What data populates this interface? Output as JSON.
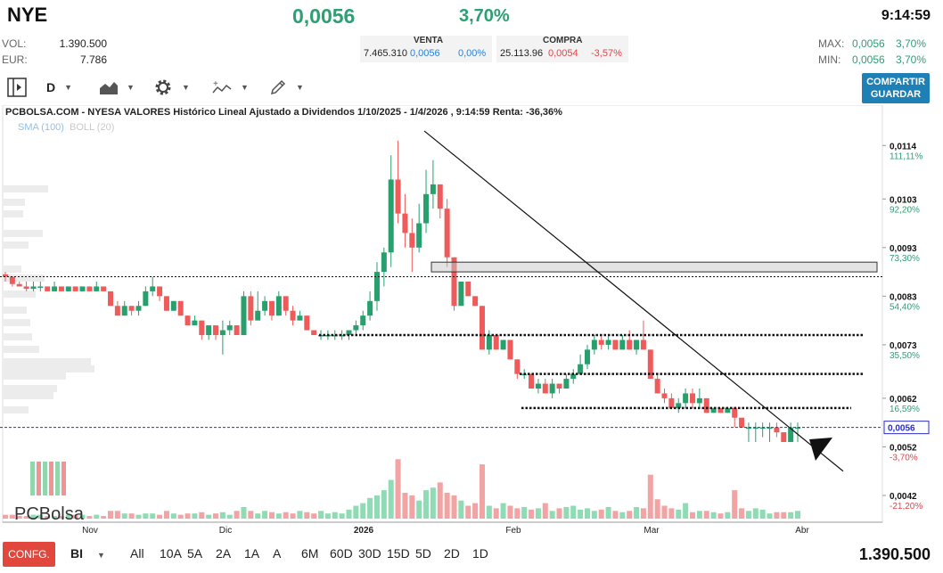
{
  "header": {
    "ticker": "NYE",
    "price": "0,0056",
    "change_pct": "3,70%",
    "time": "9:14:59",
    "vol_label": "VOL:",
    "vol_value": "1.390.500",
    "eur_label": "EUR:",
    "eur_value": "7.786",
    "venta_label": "VENTA",
    "venta_qty": "7.465.310",
    "venta_price": "0,0056",
    "venta_pct": "0,00%",
    "compra_label": "COMPRA",
    "compra_qty": "25.113.96",
    "compra_price": "0,0054",
    "compra_pct": "-3,57%",
    "max_label": "MAX:",
    "max_price": "0,0056",
    "max_pct": "3,70%",
    "min_label": "MIN:",
    "min_price": "0,0056",
    "min_pct": "3,70%"
  },
  "toolbar": {
    "period": "D",
    "share_label": "COMPARTIR",
    "save_label": "GUARDAR",
    "icons": [
      "panel-toggle-icon",
      "area-chart-icon",
      "gear-icon",
      "indicators-icon",
      "pencil-icon"
    ]
  },
  "chart": {
    "title": "PCBOLSA.COM - NYESA VALORES Histórico Lineal Ajustado a Dividendos 1/10/2025 - 1/4/2026 , 9:14:59 Renta: -36,36%",
    "sma_label": "SMA (100)",
    "boll_label": "BOLL (20)",
    "watermark": "PCBolsa",
    "current_label": "0,0056",
    "colors": {
      "up": "#27a06e",
      "down": "#ef5b5b",
      "vol_up": "#8fdcb4",
      "vol_down": "#f2a3a3",
      "sma": "#8fc1ea",
      "boll": "#c9c9c9",
      "current_line": "#2b2bd0"
    }
  },
  "chart_data": {
    "type": "candlestick",
    "y_axis": [
      {
        "price": "0,0114",
        "pct": "111,11%"
      },
      {
        "price": "0,0103",
        "pct": "92,20%"
      },
      {
        "price": "0,0093",
        "pct": "73,30%"
      },
      {
        "price": "0,0083",
        "pct": "54,40%"
      },
      {
        "price": "0,0073",
        "pct": "35,50%"
      },
      {
        "price": "0,0062",
        "pct": "16,59%"
      },
      {
        "price": "0,0052",
        "pct": "-3,70%"
      },
      {
        "price": "0,0042",
        "pct": "-21,20%"
      }
    ],
    "x_axis": [
      "Nov",
      "Dic",
      "2026",
      "Feb",
      "Mar",
      "Abr"
    ],
    "ylim": [
      0.004,
      0.0118
    ],
    "candles": [
      [
        0.00875,
        0.0088,
        0.0086,
        0.0087
      ],
      [
        0.0087,
        0.0087,
        0.0085,
        0.00855
      ],
      [
        0.00855,
        0.0086,
        0.0085,
        0.0085
      ],
      [
        0.0085,
        0.0086,
        0.0084,
        0.00845
      ],
      [
        0.00845,
        0.0086,
        0.0084,
        0.0085
      ],
      [
        0.0085,
        0.0086,
        0.0084,
        0.0085
      ],
      [
        0.0085,
        0.0085,
        0.0084,
        0.0084
      ],
      [
        0.0084,
        0.0086,
        0.0084,
        0.0085
      ],
      [
        0.0085,
        0.0085,
        0.0084,
        0.0084
      ],
      [
        0.0084,
        0.0085,
        0.0084,
        0.0085
      ],
      [
        0.0085,
        0.0085,
        0.0084,
        0.0084
      ],
      [
        0.0084,
        0.0085,
        0.0084,
        0.0085
      ],
      [
        0.0085,
        0.0085,
        0.0084,
        0.0084
      ],
      [
        0.0084,
        0.0086,
        0.0084,
        0.0085
      ],
      [
        0.0085,
        0.0085,
        0.0084,
        0.0084
      ],
      [
        0.0084,
        0.0084,
        0.0081,
        0.0081
      ],
      [
        0.0081,
        0.0082,
        0.0079,
        0.0079
      ],
      [
        0.0079,
        0.0082,
        0.0079,
        0.0081
      ],
      [
        0.0081,
        0.0081,
        0.0079,
        0.008
      ],
      [
        0.008,
        0.0082,
        0.0079,
        0.0081
      ],
      [
        0.0081,
        0.0085,
        0.0081,
        0.0084
      ],
      [
        0.0084,
        0.0087,
        0.0083,
        0.0085
      ],
      [
        0.0085,
        0.0085,
        0.0082,
        0.0083
      ],
      [
        0.0083,
        0.0083,
        0.008,
        0.008
      ],
      [
        0.008,
        0.0082,
        0.008,
        0.0082
      ],
      [
        0.0082,
        0.0082,
        0.0079,
        0.0079
      ],
      [
        0.0079,
        0.0079,
        0.0077,
        0.0077
      ],
      [
        0.0077,
        0.0079,
        0.0077,
        0.0078
      ],
      [
        0.0078,
        0.0078,
        0.0074,
        0.0075
      ],
      [
        0.0075,
        0.0077,
        0.0074,
        0.0077
      ],
      [
        0.0077,
        0.0077,
        0.0074,
        0.0075
      ],
      [
        0.0075,
        0.0078,
        0.0071,
        0.0076
      ],
      [
        0.0076,
        0.0078,
        0.0075,
        0.0077
      ],
      [
        0.0077,
        0.0077,
        0.0075,
        0.0075
      ],
      [
        0.0075,
        0.0084,
        0.0075,
        0.0083
      ],
      [
        0.0083,
        0.0084,
        0.0077,
        0.0078
      ],
      [
        0.0078,
        0.0084,
        0.0078,
        0.008
      ],
      [
        0.008,
        0.0083,
        0.0079,
        0.0082
      ],
      [
        0.0082,
        0.0082,
        0.0078,
        0.0079
      ],
      [
        0.0079,
        0.0084,
        0.0079,
        0.0083
      ],
      [
        0.0083,
        0.0083,
        0.0079,
        0.008
      ],
      [
        0.008,
        0.0081,
        0.0077,
        0.0078
      ],
      [
        0.0078,
        0.008,
        0.0078,
        0.0079
      ],
      [
        0.0079,
        0.0079,
        0.0076,
        0.0076
      ],
      [
        0.0076,
        0.0076,
        0.0075,
        0.0075
      ],
      [
        0.0075,
        0.0076,
        0.0074,
        0.0075
      ],
      [
        0.0075,
        0.0076,
        0.0074,
        0.0075
      ],
      [
        0.0075,
        0.0076,
        0.0074,
        0.0075
      ],
      [
        0.0075,
        0.0076,
        0.0074,
        0.0075
      ],
      [
        0.0075,
        0.0076,
        0.0074,
        0.0076
      ],
      [
        0.0076,
        0.0078,
        0.0075,
        0.0077
      ],
      [
        0.0077,
        0.008,
        0.0076,
        0.0079
      ],
      [
        0.0079,
        0.0084,
        0.0078,
        0.0082
      ],
      [
        0.0082,
        0.009,
        0.008,
        0.0088
      ],
      [
        0.0088,
        0.0093,
        0.0085,
        0.0092
      ],
      [
        0.0092,
        0.0112,
        0.0089,
        0.0107
      ],
      [
        0.0107,
        0.0115,
        0.0098,
        0.01
      ],
      [
        0.01,
        0.0104,
        0.0093,
        0.0096
      ],
      [
        0.0096,
        0.0099,
        0.0088,
        0.0093
      ],
      [
        0.0093,
        0.0102,
        0.0092,
        0.0098
      ],
      [
        0.0098,
        0.0109,
        0.0096,
        0.0104
      ],
      [
        0.0104,
        0.0111,
        0.0101,
        0.0106
      ],
      [
        0.0106,
        0.0106,
        0.0099,
        0.0101
      ],
      [
        0.0101,
        0.0103,
        0.0089,
        0.0091
      ],
      [
        0.0091,
        0.0091,
        0.008,
        0.0081
      ],
      [
        0.0081,
        0.0086,
        0.0081,
        0.0086
      ],
      [
        0.0086,
        0.0086,
        0.0083,
        0.0083
      ],
      [
        0.0083,
        0.0083,
        0.0081,
        0.0081
      ],
      [
        0.0081,
        0.0081,
        0.0072,
        0.0072
      ],
      [
        0.0072,
        0.0076,
        0.0071,
        0.0075
      ],
      [
        0.0075,
        0.0075,
        0.0072,
        0.0072
      ],
      [
        0.0072,
        0.0074,
        0.0072,
        0.0074
      ],
      [
        0.0074,
        0.0074,
        0.007,
        0.007
      ],
      [
        0.007,
        0.007,
        0.0066,
        0.0067
      ],
      [
        0.0067,
        0.0068,
        0.0066,
        0.0067
      ],
      [
        0.0067,
        0.0067,
        0.0064,
        0.0064
      ],
      [
        0.0064,
        0.0066,
        0.0063,
        0.0065
      ],
      [
        0.0065,
        0.0066,
        0.0063,
        0.0063
      ],
      [
        0.0063,
        0.0066,
        0.0062,
        0.0065
      ],
      [
        0.0065,
        0.0065,
        0.0063,
        0.0064
      ],
      [
        0.0064,
        0.0067,
        0.0064,
        0.0066
      ],
      [
        0.0066,
        0.0068,
        0.0065,
        0.0067
      ],
      [
        0.0067,
        0.0071,
        0.0067,
        0.0069
      ],
      [
        0.0069,
        0.0073,
        0.0068,
        0.0072
      ],
      [
        0.0072,
        0.0075,
        0.0071,
        0.0074
      ],
      [
        0.0074,
        0.0075,
        0.0072,
        0.0073
      ],
      [
        0.0073,
        0.0075,
        0.0072,
        0.0074
      ],
      [
        0.0074,
        0.0074,
        0.0072,
        0.0072
      ],
      [
        0.0072,
        0.0075,
        0.0072,
        0.0074
      ],
      [
        0.0074,
        0.0076,
        0.0072,
        0.0072
      ],
      [
        0.0072,
        0.0074,
        0.0071,
        0.0074
      ],
      [
        0.0074,
        0.0078,
        0.0072,
        0.0072
      ],
      [
        0.0072,
        0.0072,
        0.0066,
        0.0066
      ],
      [
        0.0066,
        0.0067,
        0.0063,
        0.0063
      ],
      [
        0.0063,
        0.0064,
        0.0061,
        0.0062
      ],
      [
        0.0062,
        0.0063,
        0.006,
        0.006
      ],
      [
        0.006,
        0.0062,
        0.0059,
        0.0061
      ],
      [
        0.0061,
        0.0064,
        0.006,
        0.0063
      ],
      [
        0.0063,
        0.0064,
        0.006,
        0.0061
      ],
      [
        0.0061,
        0.0064,
        0.006,
        0.0062
      ],
      [
        0.0062,
        0.0062,
        0.0059,
        0.0059
      ],
      [
        0.0059,
        0.006,
        0.0059,
        0.006
      ],
      [
        0.006,
        0.006,
        0.0059,
        0.0059
      ],
      [
        0.0059,
        0.006,
        0.0059,
        0.006
      ],
      [
        0.006,
        0.006,
        0.0056,
        0.0058
      ],
      [
        0.0058,
        0.0058,
        0.0056,
        0.0056
      ],
      [
        0.0056,
        0.0057,
        0.0053,
        0.0056
      ],
      [
        0.0056,
        0.0057,
        0.0053,
        0.0056
      ],
      [
        0.0056,
        0.0057,
        0.0054,
        0.0056
      ],
      [
        0.0056,
        0.0057,
        0.0053,
        0.0056
      ],
      [
        0.0056,
        0.0057,
        0.0054,
        0.0055
      ],
      [
        0.0055,
        0.0055,
        0.0053,
        0.0053
      ],
      [
        0.0053,
        0.0057,
        0.0053,
        0.0056
      ],
      [
        0.0056,
        0.0057,
        0.0053,
        0.0056
      ]
    ],
    "volumes": [
      3,
      3,
      2,
      2,
      3,
      3,
      2,
      2,
      2,
      3,
      3,
      3,
      2,
      3,
      2,
      6,
      6,
      4,
      4,
      3,
      4,
      4,
      3,
      6,
      4,
      3,
      4,
      4,
      5,
      3,
      4,
      5,
      3,
      6,
      9,
      6,
      4,
      6,
      5,
      4,
      5,
      4,
      6,
      5,
      4,
      6,
      4,
      5,
      4,
      7,
      10,
      12,
      16,
      18,
      22,
      30,
      46,
      20,
      18,
      14,
      22,
      24,
      28,
      20,
      18,
      14,
      10,
      12,
      42,
      10,
      8,
      12,
      10,
      8,
      9,
      7,
      8,
      12,
      6,
      8,
      9,
      10,
      7,
      8,
      6,
      7,
      9,
      6,
      5,
      6,
      9,
      8,
      34,
      15,
      10,
      8,
      7,
      12,
      5,
      6,
      6,
      5,
      4,
      5,
      22,
      8,
      6,
      8,
      7,
      4,
      5,
      5,
      5,
      6
    ],
    "horizontal_levels": [
      0.0087,
      0.0075,
      0.0067,
      0.006
    ],
    "resistance_zone": [
      0.0088,
      0.009
    ],
    "trendline": [
      [
        0.0117
      ],
      [
        0.0055
      ]
    ]
  },
  "footer": {
    "config_label": "CONFG.",
    "mode": "BI",
    "ranges": [
      "All",
      "10A",
      "5A",
      "2A",
      "1A",
      "A",
      "6M",
      "6M",
      "60D",
      "30D",
      "15D",
      "5D",
      "2D",
      "1D"
    ],
    "volume_total": "1.390.500"
  }
}
